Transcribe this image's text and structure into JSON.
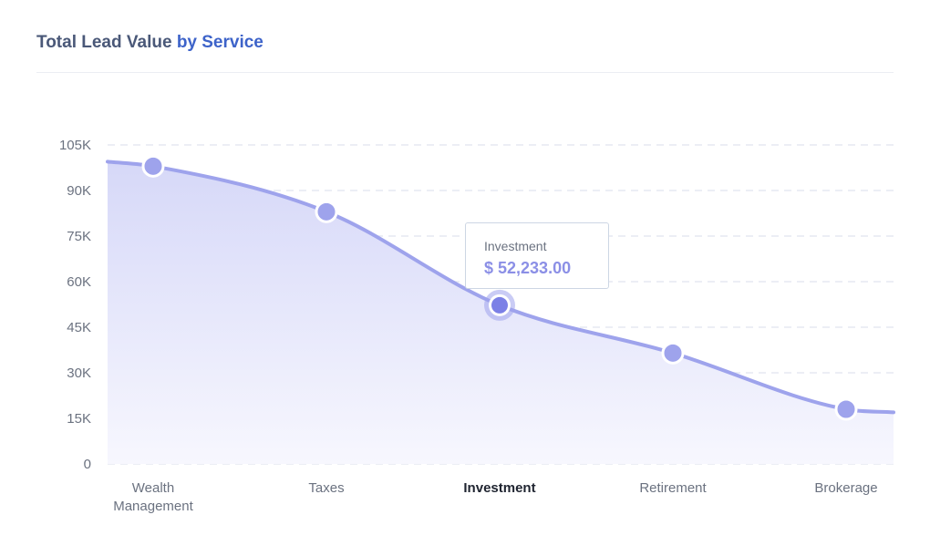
{
  "header": {
    "title_main": "Total Lead Value",
    "title_accent": "by Service"
  },
  "colors": {
    "line": "#9ea3ec",
    "fill_top": "#d6d8f8",
    "fill_bottom": "#f7f7fe",
    "point": "#9ea3ec",
    "point_active": "#7b80e6",
    "grid": "#e6e9f2",
    "accent": "#3d63c9"
  },
  "tooltip": {
    "label": "Investment",
    "value": "$ 52,233.00"
  },
  "chart_data": {
    "type": "area",
    "categories": [
      [
        "Wealth",
        "Management"
      ],
      [
        "Taxes"
      ],
      [
        "Investment"
      ],
      [
        "Retirement"
      ],
      [
        "Brokerage"
      ]
    ],
    "values": [
      98000,
      83000,
      52233,
      36500,
      18000
    ],
    "edge_values": {
      "left": 99500,
      "right": 17000
    },
    "ylim": [
      0,
      105000
    ],
    "yticks": [
      0,
      15000,
      30000,
      45000,
      60000,
      75000,
      90000,
      105000
    ],
    "ytick_labels": [
      "0",
      "15K",
      "30K",
      "45K",
      "60K",
      "75K",
      "90K",
      "105K"
    ],
    "active_index": 2,
    "grid": true,
    "legend": "none"
  }
}
